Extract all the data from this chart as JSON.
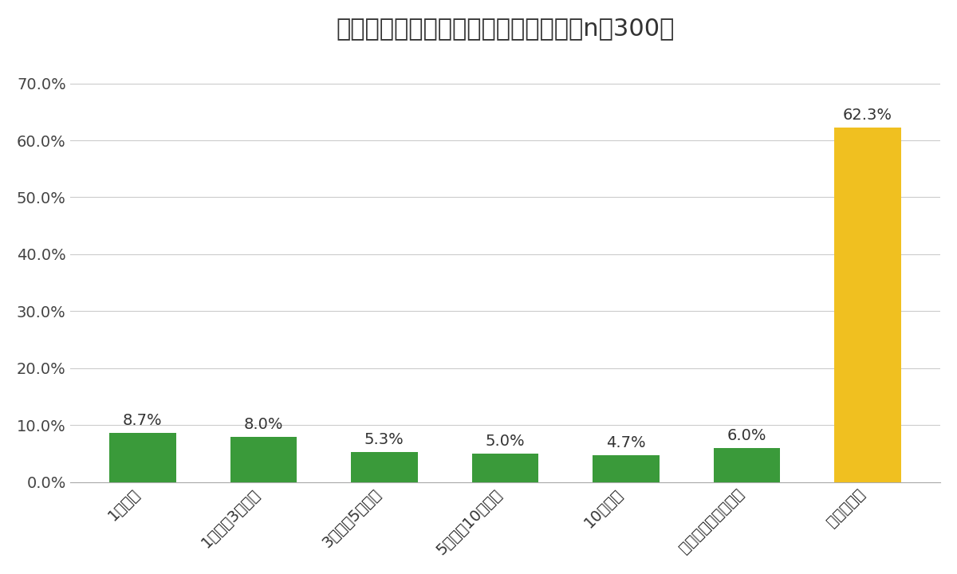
{
  "title": "国民年金の未納期間はありますか？（n＝300）",
  "categories": [
    "1年未満",
    "1年以上3年未満",
    "3年以上5年未満",
    "5年以上10年未満",
    "10年以上",
    "支払ったことがない",
    "未納はない"
  ],
  "values": [
    8.7,
    8.0,
    5.3,
    5.0,
    4.7,
    6.0,
    62.3
  ],
  "bar_colors": [
    "#3a9a3a",
    "#3a9a3a",
    "#3a9a3a",
    "#3a9a3a",
    "#3a9a3a",
    "#3a9a3a",
    "#f0c020"
  ],
  "label_texts": [
    "8.7%",
    "8.0%",
    "5.3%",
    "5.0%",
    "4.7%",
    "6.0%",
    "62.3%"
  ],
  "ylim": [
    0,
    75
  ],
  "yticks": [
    0,
    10,
    20,
    30,
    40,
    50,
    60,
    70
  ],
  "ytick_labels": [
    "0.0%",
    "10.0%",
    "20.0%",
    "30.0%",
    "40.0%",
    "50.0%",
    "60.0%",
    "70.0%"
  ],
  "background_color": "#ffffff",
  "title_fontsize": 22,
  "label_fontsize": 14,
  "tick_fontsize": 14,
  "bar_width": 0.55
}
